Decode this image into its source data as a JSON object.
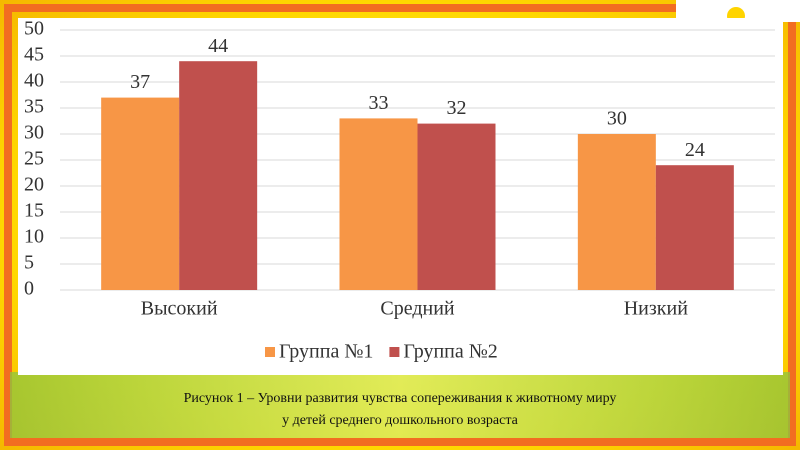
{
  "chart_data": {
    "type": "bar",
    "categories": [
      "Высокий",
      "Средний",
      "Низкий"
    ],
    "series": [
      {
        "name": "Группа №1",
        "color": "#f79646",
        "values": [
          37,
          33,
          30
        ]
      },
      {
        "name": "Группа №2",
        "color": "#c0504d",
        "values": [
          44,
          32,
          24
        ]
      }
    ],
    "ylim": [
      0,
      50
    ],
    "yticks": [
      0,
      5,
      10,
      15,
      20,
      25,
      30,
      35,
      40,
      45,
      50
    ],
    "grid": true,
    "legend": "bottom",
    "caption": [
      "Рисунок 1 – Уровни развития чувства сопереживания к животному миру",
      "у детей среднего дошкольного возраста"
    ]
  }
}
